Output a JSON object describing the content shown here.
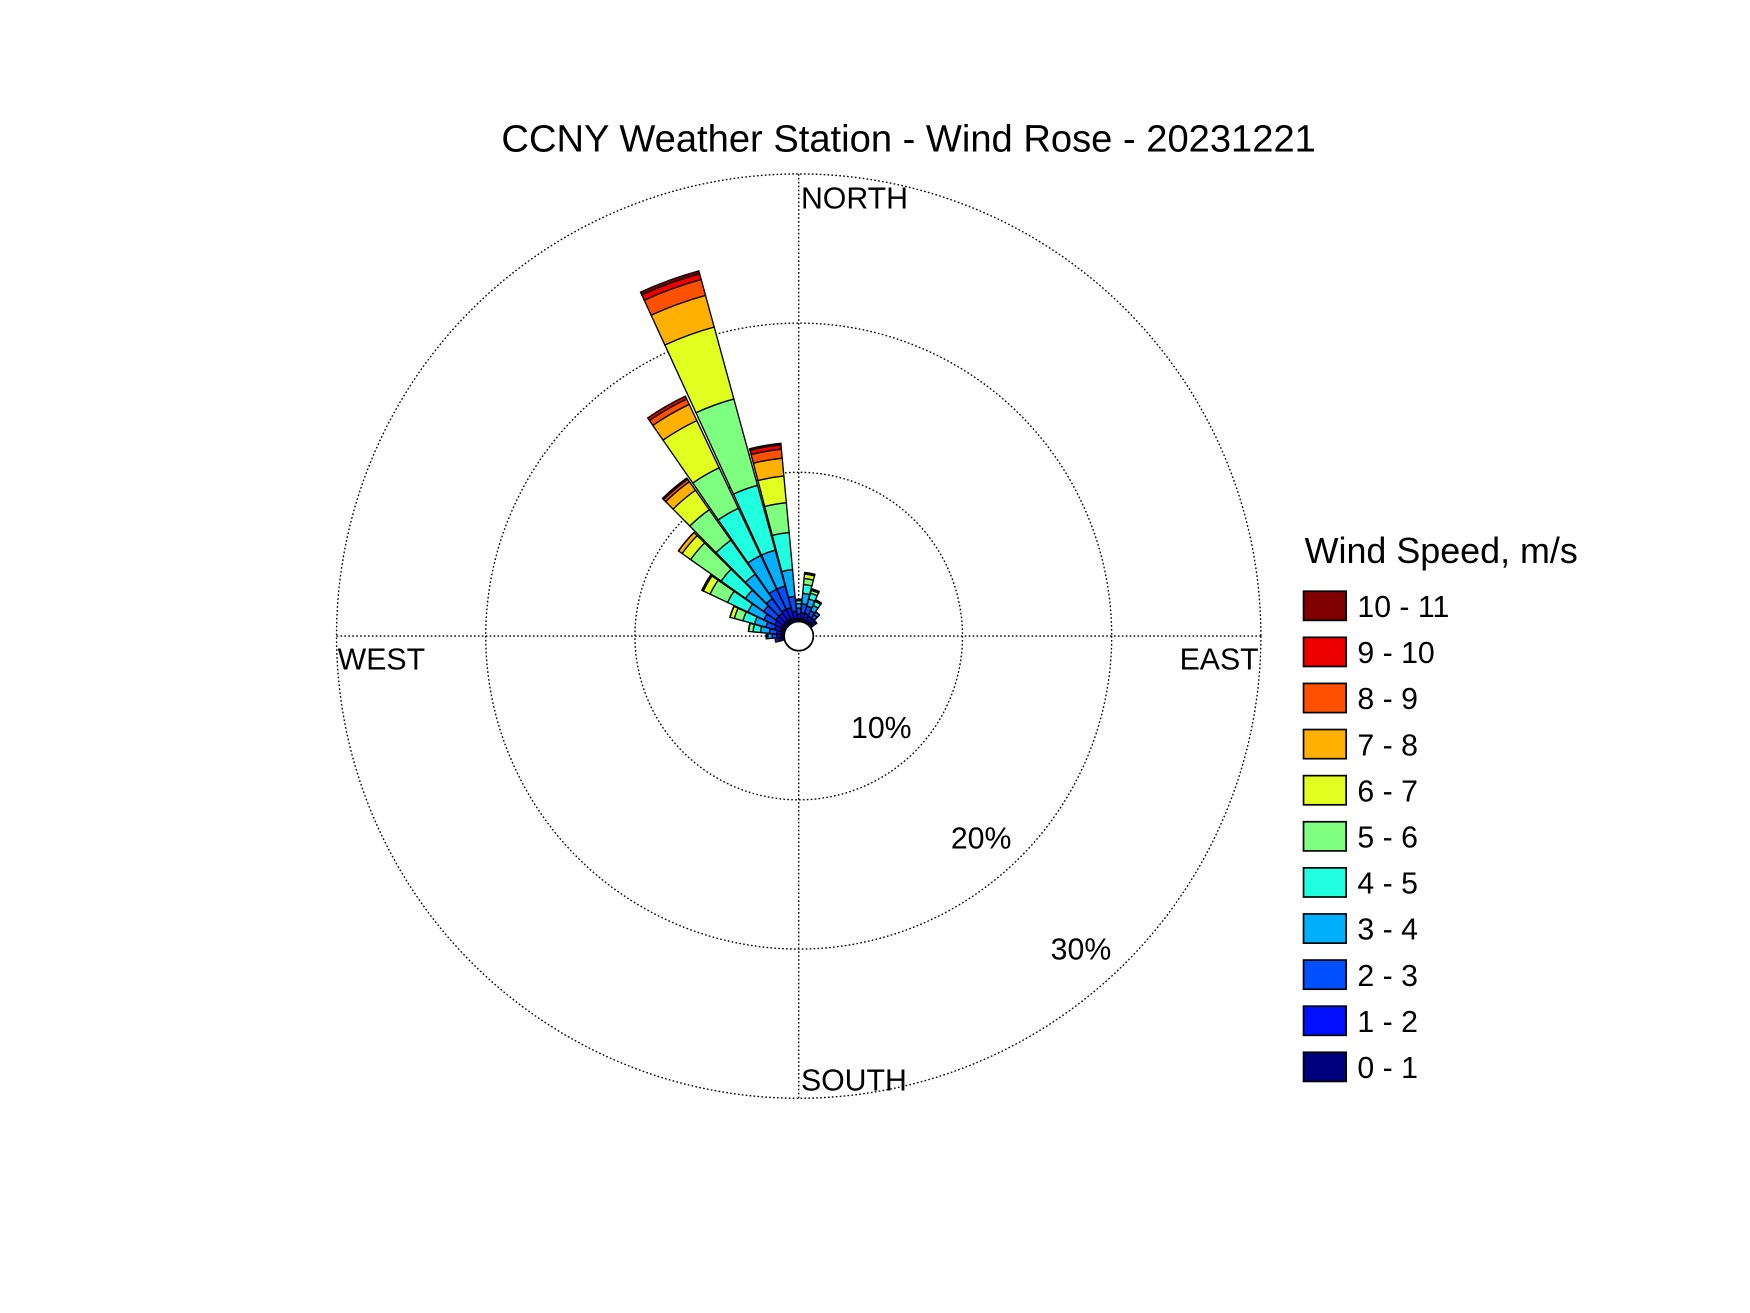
{
  "chart_data": {
    "type": "windrose",
    "title": "CCNY Weather Station - Wind Rose - 20231221",
    "legend_title": "Wind Speed, m/s",
    "direction_labels": {
      "north": "NORTH",
      "east": "EAST",
      "south": "SOUTH",
      "west": "WEST"
    },
    "x": [
      0,
      10,
      20,
      30,
      40,
      50,
      60,
      70,
      80,
      90,
      100,
      110,
      120,
      130,
      140,
      150,
      160,
      170,
      180,
      190,
      200,
      210,
      220,
      230,
      240,
      250,
      260,
      270,
      280,
      290,
      300,
      310,
      320,
      330,
      340,
      350
    ],
    "rlim": [
      0,
      30
    ],
    "rticks": [
      {
        "value": 10,
        "label": "10%"
      },
      {
        "value": 20,
        "label": "20%"
      },
      {
        "value": 30,
        "label": "30%"
      }
    ],
    "series": [
      {
        "name": "0 - 1",
        "color": "#00007f",
        "values": [
          0.2,
          0.2,
          0.2,
          0.2,
          0.2,
          0.2,
          0,
          0,
          0,
          0,
          0,
          0,
          0,
          0,
          0,
          0,
          0,
          0,
          0,
          0,
          0,
          0,
          0,
          0,
          0,
          0,
          0.2,
          0.2,
          0.2,
          0.3,
          0.3,
          0.3,
          0.3,
          0.3,
          0.3,
          0.2
        ]
      },
      {
        "name": "1 - 2",
        "color": "#0010ff",
        "values": [
          0.3,
          0.4,
          0.4,
          0.3,
          0.3,
          0.2,
          0,
          0,
          0,
          0,
          0,
          0,
          0,
          0,
          0,
          0,
          0,
          0,
          0,
          0,
          0,
          0,
          0,
          0,
          0,
          0,
          0.2,
          0.3,
          0.3,
          0.4,
          0.5,
          0.6,
          0.6,
          0.7,
          0.7,
          0.5
        ]
      },
      {
        "name": "2 - 3",
        "color": "#0050ff",
        "values": [
          0.4,
          0.6,
          0.5,
          0.4,
          0.3,
          0.1,
          0,
          0,
          0,
          0,
          0,
          0,
          0,
          0,
          0,
          0,
          0,
          0,
          0,
          0,
          0,
          0,
          0,
          0,
          0,
          0,
          0.2,
          0.3,
          0.5,
          0.6,
          0.8,
          1.0,
          1.2,
          1.5,
          1.5,
          1.0
        ]
      },
      {
        "name": "3 - 4",
        "color": "#00b0ff",
        "values": [
          0.3,
          0.7,
          0.5,
          0.4,
          0.2,
          0,
          0,
          0,
          0,
          0,
          0,
          0,
          0,
          0,
          0,
          0,
          0,
          0,
          0,
          0,
          0,
          0,
          0,
          0,
          0,
          0,
          0,
          0.3,
          0.6,
          0.8,
          1.2,
          1.5,
          2.0,
          2.5,
          2.5,
          1.8
        ]
      },
      {
        "name": "4 - 5",
        "color": "#20ffe0",
        "values": [
          0.2,
          0.6,
          0.4,
          0.3,
          0,
          0,
          0,
          0,
          0,
          0,
          0,
          0,
          0,
          0,
          0,
          0,
          0,
          0,
          0,
          0,
          0,
          0,
          0,
          0,
          0,
          0,
          0,
          0.1,
          0.5,
          0.8,
          1.5,
          2.0,
          2.8,
          3.5,
          4.5,
          2.5
        ]
      },
      {
        "name": "5 - 6",
        "color": "#7fff7f",
        "values": [
          0.1,
          0.4,
          0.2,
          0.1,
          0,
          0,
          0,
          0,
          0,
          0,
          0,
          0,
          0,
          0,
          0,
          0,
          0,
          0,
          0,
          0,
          0,
          0,
          0,
          0,
          0,
          0,
          0,
          0,
          0.3,
          0.6,
          1.3,
          2.5,
          2.5,
          3.0,
          6.0,
          2.0
        ]
      },
      {
        "name": "6 - 7",
        "color": "#e0ff20",
        "values": [
          0,
          0.3,
          0.1,
          0,
          0,
          0,
          0,
          0,
          0,
          0,
          0,
          0,
          0,
          0,
          0,
          0,
          0,
          0,
          0,
          0,
          0,
          0,
          0,
          0,
          0,
          0,
          0,
          0,
          0,
          0.3,
          0.5,
          0.7,
          1.6,
          3.5,
          5.0,
          1.8
        ]
      },
      {
        "name": "7 - 8",
        "color": "#ffb000",
        "values": [
          0,
          0.1,
          0,
          0,
          0,
          0,
          0,
          0,
          0,
          0,
          0,
          0,
          0,
          0,
          0,
          0,
          0,
          0,
          0,
          0,
          0,
          0,
          0,
          0,
          0,
          0,
          0,
          0,
          0,
          0,
          0.1,
          0.3,
          0.7,
          1.2,
          2.2,
          1.2
        ]
      },
      {
        "name": "8 - 9",
        "color": "#ff5000",
        "values": [
          0,
          0,
          0,
          0,
          0,
          0,
          0,
          0,
          0,
          0,
          0,
          0,
          0,
          0,
          0,
          0,
          0,
          0,
          0,
          0,
          0,
          0,
          0,
          0,
          0,
          0,
          0,
          0,
          0,
          0,
          0,
          0,
          0.2,
          0.4,
          1.1,
          0.6
        ]
      },
      {
        "name": "9 - 10",
        "color": "#ee0000",
        "values": [
          0,
          0,
          0,
          0,
          0,
          0,
          0,
          0,
          0,
          0,
          0,
          0,
          0,
          0,
          0,
          0,
          0,
          0,
          0,
          0,
          0,
          0,
          0,
          0,
          0,
          0,
          0,
          0,
          0,
          0,
          0,
          0,
          0.1,
          0.2,
          0.4,
          0.3
        ]
      },
      {
        "name": "10 - 11",
        "color": "#7f0000",
        "values": [
          0,
          0,
          0,
          0,
          0,
          0,
          0,
          0,
          0,
          0,
          0,
          0,
          0,
          0,
          0,
          0,
          0,
          0,
          0,
          0,
          0,
          0,
          0,
          0,
          0,
          0,
          0,
          0,
          0,
          0,
          0,
          0,
          0,
          0,
          0.2,
          0.1
        ]
      }
    ]
  }
}
